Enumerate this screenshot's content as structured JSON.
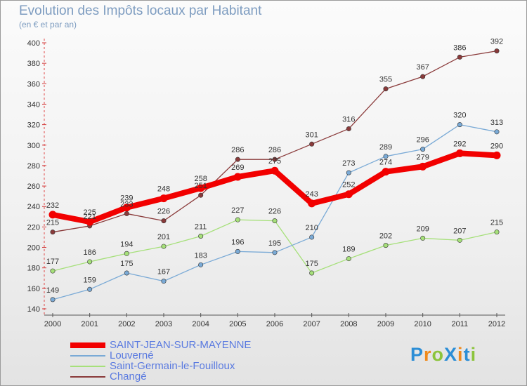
{
  "title": "Evolution des Impôts locaux par Habitant",
  "subtitle": "(en € et par an)",
  "logo": {
    "text": "ProXiti",
    "letters": [
      {
        "ch": "P",
        "color": "#2c8ed6"
      },
      {
        "ch": "r",
        "color": "#f08a1c"
      },
      {
        "ch": "o",
        "color": "#8cc43c"
      },
      {
        "ch": "X",
        "color": "#2c8ed6"
      },
      {
        "ch": "i",
        "color": "#f08a1c"
      },
      {
        "ch": "t",
        "color": "#2c8ed6"
      },
      {
        "ch": "i",
        "color": "#8cc43c"
      }
    ]
  },
  "chart_data": {
    "type": "line",
    "title": "Evolution des Impôts locaux par Habitant",
    "subtitle": "(en € et par an)",
    "xlabel": "",
    "ylabel": "",
    "x": [
      "2000",
      "2001",
      "2002",
      "2003",
      "2004",
      "2005",
      "2006",
      "2007",
      "2008",
      "2009",
      "2010",
      "2011",
      "2012"
    ],
    "ylim": [
      140,
      400
    ],
    "yticks": [
      140,
      160,
      180,
      200,
      220,
      240,
      260,
      280,
      300,
      320,
      340,
      360,
      380,
      400
    ],
    "grid": false,
    "legend_position": "bottom-left",
    "series": [
      {
        "name": "SAINT-JEAN-SUR-MAYENNE",
        "color": "#f20000",
        "values": [
          232,
          225,
          239,
          248,
          258,
          269,
          275,
          243,
          252,
          274,
          279,
          292,
          290
        ]
      },
      {
        "name": "Louverné",
        "color": "#7aaad6",
        "values": [
          149,
          159,
          175,
          167,
          183,
          196,
          195,
          210,
          273,
          289,
          296,
          320,
          313
        ]
      },
      {
        "name": "Saint-Germain-le-Fouilloux",
        "color": "#a6e07a",
        "values": [
          177,
          186,
          194,
          201,
          211,
          227,
          226,
          175,
          189,
          202,
          209,
          207,
          215
        ]
      },
      {
        "name": "Changé",
        "color": "#8a3a3a",
        "values": [
          215,
          221,
          233,
          226,
          251,
          286,
          286,
          301,
          316,
          355,
          367,
          386,
          392
        ]
      }
    ]
  }
}
